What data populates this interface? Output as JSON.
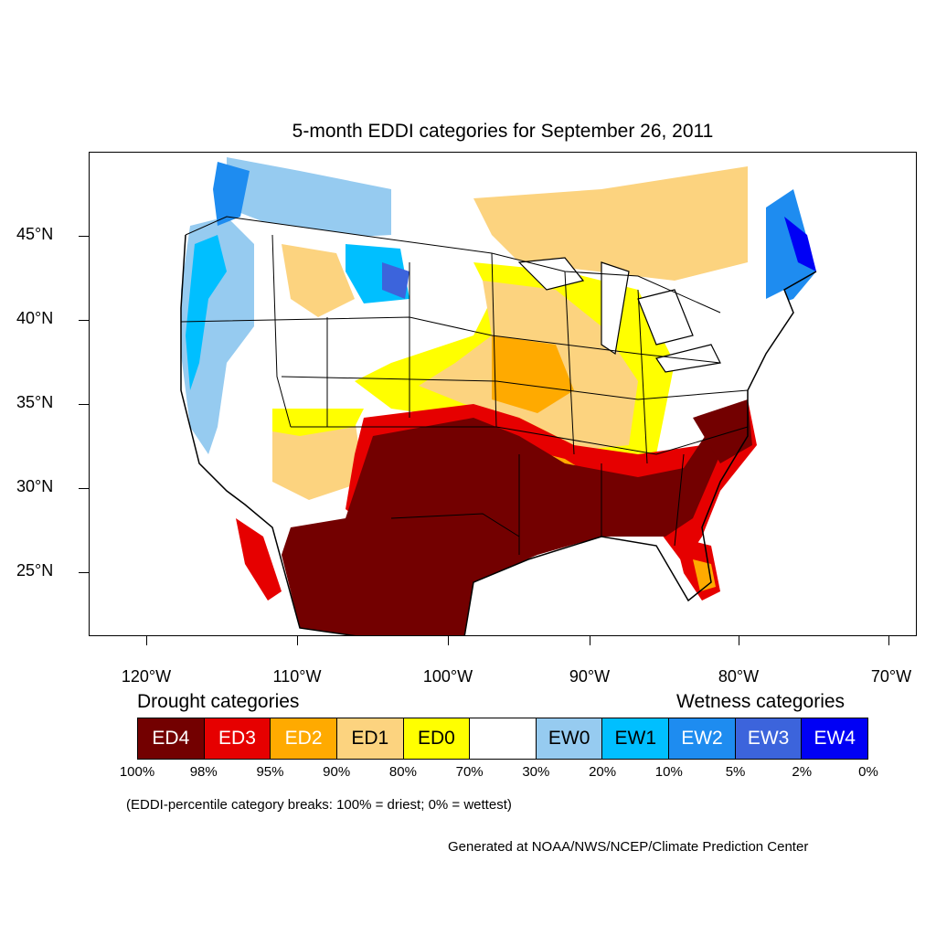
{
  "title": "5-month EDDI categories for September 26, 2011",
  "map": {
    "lat_labels": [
      "45°N",
      "40°N",
      "35°N",
      "30°N",
      "25°N"
    ],
    "lon_labels": [
      "120°W",
      "110°W",
      "100°W",
      "90°W",
      "80°W",
      "70°W"
    ],
    "colors": {
      "ED4": "#730000",
      "ED3": "#e60000",
      "ED2": "#ffaa00",
      "ED1": "#fcd37f",
      "ED0": "#ffff00",
      "neutral": "#ffffff",
      "EW0": "#96cbf0",
      "EW1": "#00bfff",
      "EW2": "#1e8cf0",
      "EW3": "#3c64dc",
      "EW4": "#0000f5"
    }
  },
  "legend": {
    "drought_heading": "Drought categories",
    "wetness_heading": "Wetness categories",
    "categories": [
      {
        "label": "ED4",
        "color": "#730000",
        "text_color": "#ffffff"
      },
      {
        "label": "ED3",
        "color": "#e60000",
        "text_color": "#ffffff"
      },
      {
        "label": "ED2",
        "color": "#ffaa00",
        "text_color": "#ffffff"
      },
      {
        "label": "ED1",
        "color": "#fcd37f",
        "text_color": "#000000"
      },
      {
        "label": "ED0",
        "color": "#ffff00",
        "text_color": "#000000"
      },
      {
        "label": "",
        "color": "#ffffff",
        "text_color": "#000000"
      },
      {
        "label": "EW0",
        "color": "#96cbf0",
        "text_color": "#000000"
      },
      {
        "label": "EW1",
        "color": "#00bfff",
        "text_color": "#000000"
      },
      {
        "label": "EW2",
        "color": "#1e8cf0",
        "text_color": "#ffffff"
      },
      {
        "label": "EW3",
        "color": "#3c64dc",
        "text_color": "#ffffff"
      },
      {
        "label": "EW4",
        "color": "#0000f5",
        "text_color": "#ffffff"
      }
    ],
    "percent_breaks": [
      "100%",
      "98%",
      "95%",
      "90%",
      "80%",
      "70%",
      "30%",
      "20%",
      "10%",
      "5%",
      "2%",
      "0%"
    ]
  },
  "note": "(EDDI-percentile category breaks: 100% = driest; 0% = wettest)",
  "credit": "Generated at NOAA/NWS/NCEP/Climate Prediction Center"
}
